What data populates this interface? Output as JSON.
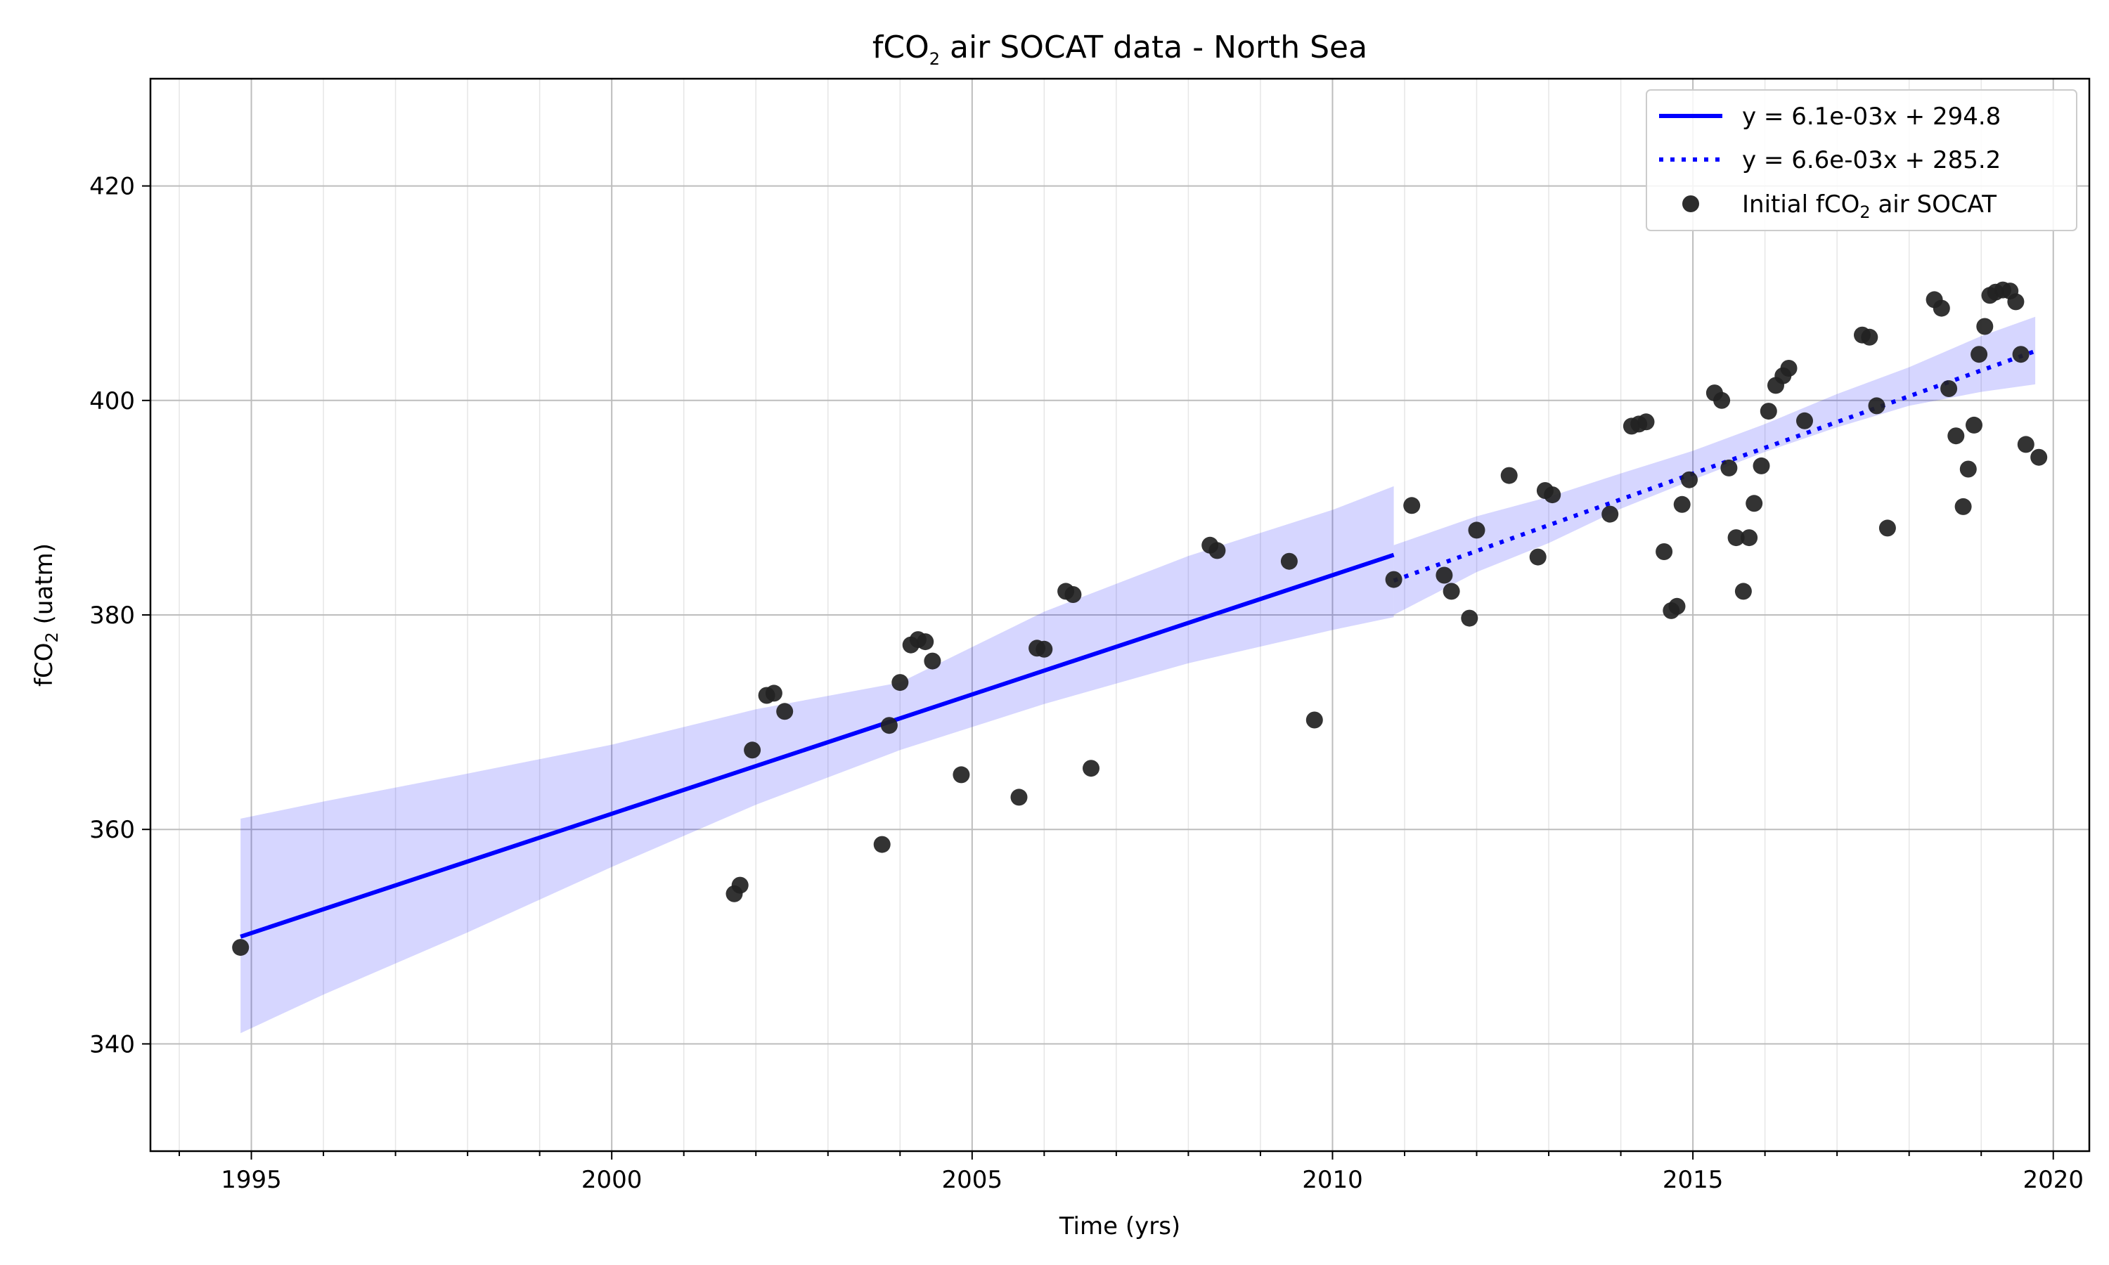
{
  "chart_data": {
    "type": "scatter",
    "title": {
      "main": "fCO",
      "sub": "2",
      "rest": " air SOCAT data - North Sea"
    },
    "xlabel": "Time (yrs)",
    "ylabel": {
      "main": "fCO",
      "sub": "2",
      "rest": " (uatm)"
    },
    "xlim": [
      1993.6,
      2020.5
    ],
    "ylim": [
      330,
      430
    ],
    "x_ticks": [
      1995,
      2000,
      2005,
      2010,
      2015,
      2020
    ],
    "x_tick_labels": [
      "1995",
      "2000",
      "2005",
      "2010",
      "2015",
      "2020"
    ],
    "y_ticks": [
      340,
      360,
      380,
      400,
      420
    ],
    "y_tick_labels": [
      "340",
      "360",
      "380",
      "400",
      "420"
    ],
    "grid": true,
    "legend_position": "top-right",
    "series": [
      {
        "name": "y = 6.1e-03x + 294.8",
        "kind": "line",
        "style": "solid",
        "color": "#0000ff",
        "x": [
          1994.85,
          2010.85
        ],
        "y": [
          350.0,
          385.6
        ]
      },
      {
        "name": "y = 6.6e-03x + 285.2",
        "kind": "line",
        "style": "dotted",
        "color": "#0000ff",
        "x": [
          2010.85,
          2019.75
        ],
        "y": [
          383.2,
          404.6
        ]
      },
      {
        "name": {
          "main": "Initial fCO",
          "sub": "2",
          "rest": " air SOCAT"
        },
        "kind": "scatter",
        "color": "#222222",
        "points": [
          [
            1994.85,
            349.0
          ],
          [
            2001.7,
            354.0
          ],
          [
            2001.78,
            354.8
          ],
          [
            2001.95,
            367.4
          ],
          [
            2002.15,
            372.5
          ],
          [
            2002.25,
            372.7
          ],
          [
            2002.4,
            371.0
          ],
          [
            2003.75,
            358.6
          ],
          [
            2003.85,
            369.7
          ],
          [
            2004.0,
            373.7
          ],
          [
            2004.15,
            377.2
          ],
          [
            2004.25,
            377.7
          ],
          [
            2004.35,
            377.5
          ],
          [
            2004.45,
            375.7
          ],
          [
            2004.85,
            365.1
          ],
          [
            2005.65,
            363.0
          ],
          [
            2005.9,
            376.9
          ],
          [
            2006.0,
            376.8
          ],
          [
            2006.3,
            382.2
          ],
          [
            2006.4,
            381.9
          ],
          [
            2006.65,
            365.7
          ],
          [
            2008.3,
            386.5
          ],
          [
            2008.4,
            386.0
          ],
          [
            2009.4,
            385.0
          ],
          [
            2009.75,
            370.2
          ],
          [
            2010.85,
            383.3
          ],
          [
            2011.1,
            390.2
          ],
          [
            2011.55,
            383.7
          ],
          [
            2011.65,
            382.2
          ],
          [
            2011.9,
            379.7
          ],
          [
            2012.0,
            387.9
          ],
          [
            2012.45,
            393.0
          ],
          [
            2012.85,
            385.4
          ],
          [
            2012.95,
            391.6
          ],
          [
            2013.05,
            391.2
          ],
          [
            2013.85,
            389.4
          ],
          [
            2014.15,
            397.6
          ],
          [
            2014.25,
            397.8
          ],
          [
            2014.35,
            398.0
          ],
          [
            2014.6,
            385.9
          ],
          [
            2014.7,
            380.4
          ],
          [
            2014.78,
            380.8
          ],
          [
            2014.85,
            390.3
          ],
          [
            2014.95,
            392.6
          ],
          [
            2015.3,
            400.7
          ],
          [
            2015.4,
            400.0
          ],
          [
            2015.5,
            393.7
          ],
          [
            2015.6,
            387.2
          ],
          [
            2015.7,
            382.2
          ],
          [
            2015.78,
            387.2
          ],
          [
            2015.85,
            390.4
          ],
          [
            2015.95,
            393.9
          ],
          [
            2016.05,
            399.0
          ],
          [
            2016.15,
            401.4
          ],
          [
            2016.25,
            402.3
          ],
          [
            2016.33,
            403.0
          ],
          [
            2016.55,
            398.1
          ],
          [
            2017.35,
            406.1
          ],
          [
            2017.45,
            405.9
          ],
          [
            2017.55,
            399.5
          ],
          [
            2017.7,
            388.1
          ],
          [
            2018.35,
            409.4
          ],
          [
            2018.45,
            408.6
          ],
          [
            2018.55,
            401.1
          ],
          [
            2018.65,
            396.7
          ],
          [
            2018.75,
            390.1
          ],
          [
            2018.82,
            393.6
          ],
          [
            2018.9,
            397.7
          ],
          [
            2018.97,
            404.3
          ],
          [
            2019.05,
            406.9
          ],
          [
            2019.12,
            409.8
          ],
          [
            2019.2,
            410.1
          ],
          [
            2019.3,
            410.3
          ],
          [
            2019.4,
            410.2
          ],
          [
            2019.48,
            409.2
          ],
          [
            2019.55,
            404.3
          ],
          [
            2019.62,
            395.9
          ],
          [
            2019.8,
            394.7
          ]
        ]
      }
    ],
    "confidence_bands": [
      {
        "color": "#0000ff",
        "opacity": 0.16,
        "x": [
          1994.85,
          1996,
          1998,
          2000,
          2002,
          2004,
          2006,
          2008,
          2010,
          2010.85
        ],
        "upper": [
          361.0,
          362.6,
          365.2,
          367.9,
          371.2,
          373.7,
          380.3,
          385.5,
          389.8,
          392.0
        ],
        "lower": [
          341.0,
          344.6,
          350.4,
          356.5,
          362.3,
          367.4,
          371.7,
          375.5,
          378.6,
          379.8
        ]
      },
      {
        "color": "#0000ff",
        "opacity": 0.16,
        "x": [
          2010.85,
          2012,
          2013,
          2014,
          2015,
          2016,
          2017,
          2018,
          2019,
          2019.75
        ],
        "upper": [
          386.5,
          389.2,
          391.0,
          393.2,
          395.3,
          397.8,
          400.6,
          403.1,
          406.0,
          407.8
        ],
        "lower": [
          380.0,
          384.0,
          386.7,
          389.9,
          392.6,
          395.2,
          397.5,
          399.5,
          400.8,
          401.5
        ]
      }
    ]
  }
}
